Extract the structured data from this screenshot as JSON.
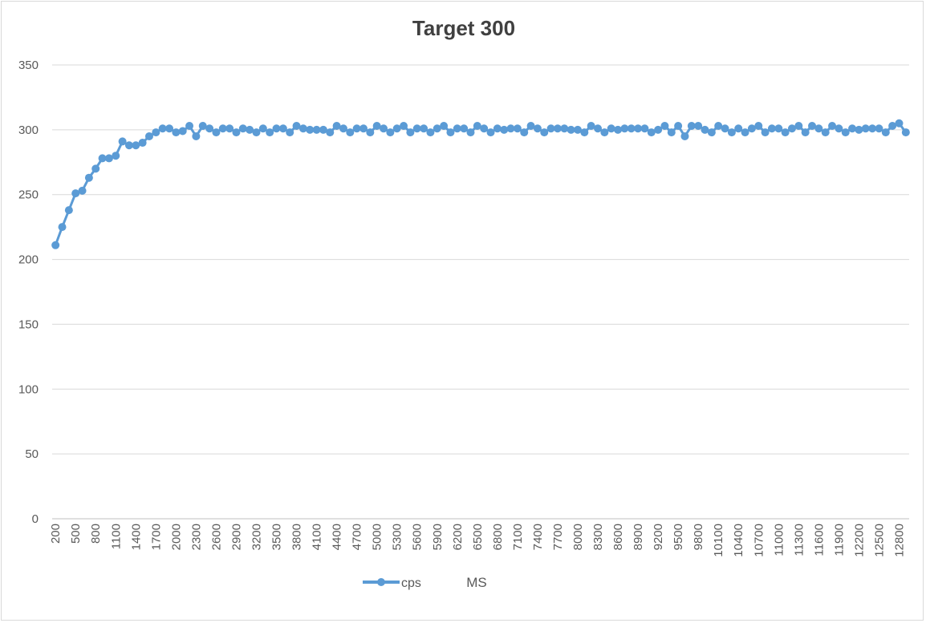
{
  "chart_data": {
    "type": "line",
    "title": "Target 300",
    "xlabel": "MS",
    "ylabel": "",
    "ylim": [
      0,
      350
    ],
    "yticks": [
      "0",
      "50",
      "100",
      "150",
      "200",
      "250",
      "300",
      "350"
    ],
    "x_start": 200,
    "x_step": 100,
    "x_tick_labels": [
      "200",
      "500",
      "800",
      "1100",
      "1400",
      "1700",
      "2000",
      "2300",
      "2600",
      "2900",
      "3200",
      "3500",
      "3800",
      "4100",
      "4400",
      "4700",
      "5000",
      "5300",
      "5600",
      "5900",
      "6200",
      "6500",
      "6800",
      "7100",
      "7400",
      "7700",
      "8000",
      "8300",
      "8600",
      "8900",
      "9200",
      "9500",
      "9800",
      "10100",
      "10400",
      "10700",
      "11000",
      "11300",
      "11600",
      "11900",
      "12200",
      "12500",
      "12800"
    ],
    "grid": true,
    "legend": "bottom",
    "color": "#5b9bd5",
    "series": [
      {
        "name": "cps",
        "values": [
          211,
          225,
          238,
          251,
          253,
          263,
          270,
          278,
          278,
          280,
          291,
          288,
          288,
          290,
          295,
          298,
          301,
          301,
          298,
          299,
          303,
          295,
          303,
          301,
          298,
          301,
          301,
          298,
          301,
          300,
          298,
          301,
          298,
          301,
          301,
          298,
          303,
          301,
          300,
          300,
          300,
          298,
          303,
          301,
          298,
          301,
          301,
          298,
          303,
          301,
          298,
          301,
          303,
          298,
          301,
          301,
          298,
          301,
          303,
          298,
          301,
          301,
          298,
          303,
          301,
          298,
          301,
          300,
          301,
          301,
          298,
          303,
          301,
          298,
          301,
          301,
          301,
          300,
          300,
          298,
          303,
          301,
          298,
          301,
          300,
          301,
          301,
          301,
          301,
          298,
          300,
          303,
          298,
          303,
          295,
          303,
          303,
          300,
          298,
          303,
          301,
          298,
          301,
          298,
          301,
          303,
          298,
          301,
          301,
          298,
          301,
          303,
          298,
          303,
          301,
          298,
          303,
          301,
          298,
          301,
          300,
          301,
          301,
          301,
          298,
          303,
          305,
          298
        ]
      }
    ]
  }
}
